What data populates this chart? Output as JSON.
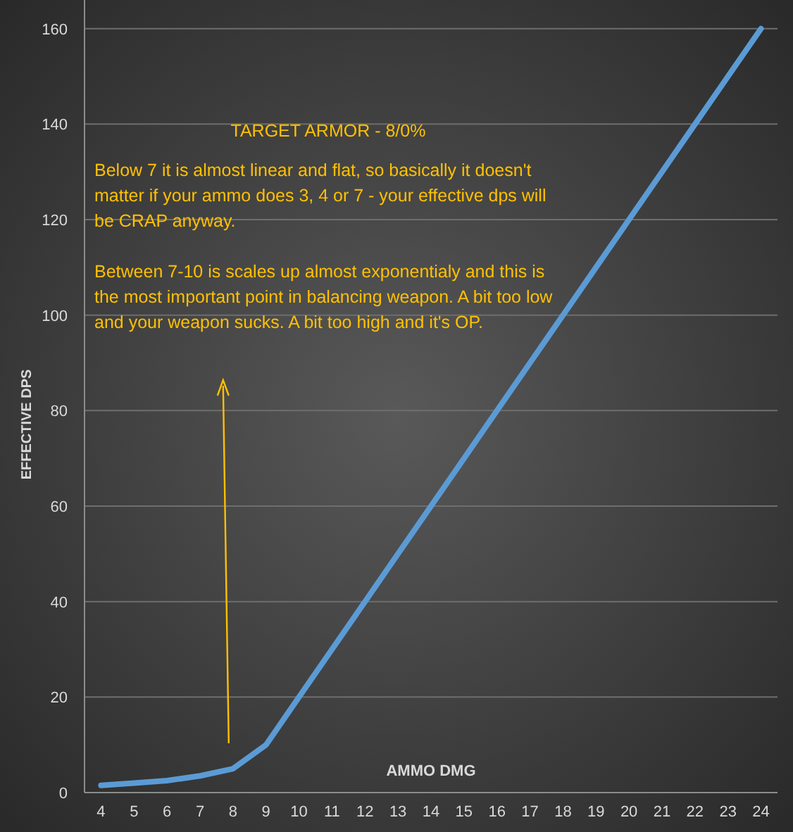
{
  "chart_data": {
    "type": "line",
    "title": "TARGET ARMOR - 8/0%",
    "xlabel": "AMMO DMG",
    "ylabel": "EFFECTIVE DPS",
    "categories": [
      "4",
      "5",
      "6",
      "7",
      "8",
      "9",
      "10",
      "11",
      "12",
      "13",
      "14",
      "15",
      "16",
      "17",
      "18",
      "19",
      "20",
      "21",
      "22",
      "23",
      "24"
    ],
    "series": [
      {
        "color": "#5b9bd5",
        "values": [
          1.5,
          2,
          2.5,
          3.5,
          5,
          10,
          20,
          30,
          40,
          50,
          60,
          70,
          80,
          90,
          100,
          110,
          120,
          130,
          140,
          150,
          160
        ]
      }
    ],
    "ylim": [
      0,
      166
    ],
    "yticks": [
      0,
      20,
      40,
      60,
      80,
      100,
      120,
      140,
      160
    ],
    "grid": "y",
    "marker": "none",
    "line_style": "solid",
    "annotations": [
      "Below 7 it is almost linear and flat, so basically it doesn't matter if your ammo does 3, 4 or 7 - your effective dps will be CRAP anyway.",
      "Between 7-10 is scales up almost exponentialy and this is the most important point in balancing weapon. A bit too low and your weapon sucks. A bit too high and it's OP."
    ]
  }
}
